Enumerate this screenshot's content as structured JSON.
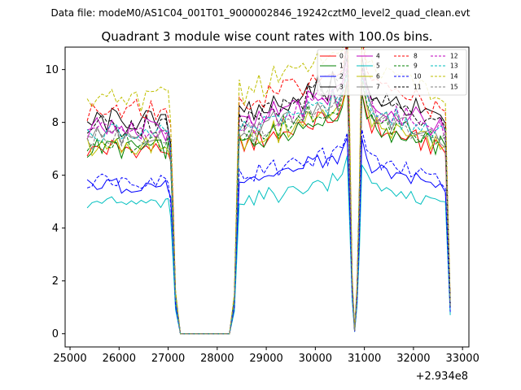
{
  "chart_data": {
    "type": "line",
    "suptitle": "Data file: modeM0/AS1C04_001T01_9000002846_19242cztM0_level2_quad_clean.evt",
    "title": "Quadrant 3 module wise count rates with 100.0s bins.",
    "xlabel": "",
    "ylabel": "",
    "x_offset_label": "+2.934e8",
    "x_tick_labels": [
      "25000",
      "26000",
      "27000",
      "28000",
      "29000",
      "30000",
      "31000",
      "32000",
      "33000"
    ],
    "x_ticks": [
      25000,
      26000,
      27000,
      28000,
      29000,
      30000,
      31000,
      32000,
      33000
    ],
    "y_tick_labels": [
      "0",
      "2",
      "4",
      "6",
      "8",
      "10"
    ],
    "y_ticks": [
      0,
      2,
      4,
      6,
      8,
      10
    ],
    "xlim": [
      24900,
      33130
    ],
    "ylim": [
      -0.5,
      10.85
    ],
    "legend_location": "upper-right",
    "legend_columns": 4,
    "segment_profile": {
      "x": [
        25350,
        25450,
        25550,
        25650,
        25750,
        25850,
        25950,
        26050,
        26150,
        26250,
        26350,
        26450,
        26550,
        26650,
        26750,
        26850,
        26950,
        27000,
        27050,
        27100,
        27150,
        27250,
        28250,
        28350,
        28450,
        28550,
        28650,
        28750,
        28850,
        28950,
        29050,
        29150,
        29250,
        29350,
        29450,
        29550,
        29650,
        29750,
        29850,
        29950,
        30050,
        30150,
        30250,
        30350,
        30450,
        30550,
        30650,
        30700,
        30750,
        30800,
        30850,
        30900,
        30950,
        31050,
        31150,
        31250,
        31350,
        31450,
        31550,
        31650,
        31750,
        31850,
        31950,
        32050,
        32150,
        32250,
        32350,
        32450,
        32550,
        32650,
        32750
      ],
      "y": [
        6.95,
        6.9,
        7.05,
        7.0,
        6.95,
        7.1,
        7.0,
        6.9,
        7.05,
        6.95,
        7.0,
        6.9,
        7.05,
        7.0,
        6.95,
        7.0,
        6.9,
        7.0,
        6.2,
        4.0,
        1.3,
        0.0,
        0.0,
        1.2,
        7.2,
        7.1,
        7.3,
        7.2,
        7.4,
        7.3,
        7.5,
        7.6,
        7.4,
        7.7,
        7.6,
        7.8,
        7.9,
        7.7,
        8.0,
        7.9,
        8.2,
        8.1,
        7.9,
        8.3,
        8.2,
        8.5,
        9.4,
        6.0,
        1.8,
        0.1,
        1.5,
        4.8,
        9.2,
        8.3,
        7.9,
        7.8,
        7.6,
        7.7,
        7.5,
        7.6,
        7.4,
        7.5,
        7.3,
        7.4,
        7.2,
        7.3,
        7.1,
        7.0,
        7.1,
        6.9,
        1.0
      ]
    },
    "series": [
      {
        "name": "0",
        "color": "#ff0000",
        "style": "solid",
        "level": 6.95
      },
      {
        "name": "1",
        "color": "#008000",
        "style": "solid",
        "level": 7.0
      },
      {
        "name": "2",
        "color": "#0000ff",
        "style": "solid",
        "level": 5.6
      },
      {
        "name": "3",
        "color": "#000000",
        "style": "solid",
        "level": 8.0
      },
      {
        "name": "4",
        "color": "#bf00bf",
        "style": "solid",
        "level": 7.7
      },
      {
        "name": "5",
        "color": "#00bfbf",
        "style": "solid",
        "level": 4.9
      },
      {
        "name": "6",
        "color": "#bfbf00",
        "style": "solid",
        "level": 7.1
      },
      {
        "name": "7",
        "color": "#808080",
        "style": "solid",
        "level": 7.4
      },
      {
        "name": "8",
        "color": "#ff0000",
        "style": "dashed",
        "level": 8.4
      },
      {
        "name": "9",
        "color": "#008000",
        "style": "dashed",
        "level": 7.2
      },
      {
        "name": "10",
        "color": "#0000ff",
        "style": "dashed",
        "level": 5.8
      },
      {
        "name": "11",
        "color": "#000000",
        "style": "dashed",
        "level": 7.9
      },
      {
        "name": "12",
        "color": "#bf00bf",
        "style": "dashed",
        "level": 7.6
      },
      {
        "name": "13",
        "color": "#00bfbf",
        "style": "dashed",
        "level": 7.5
      },
      {
        "name": "14",
        "color": "#bfbf00",
        "style": "dashed",
        "level": 8.9
      },
      {
        "name": "15",
        "color": "#808080",
        "style": "dashed",
        "level": 7.3
      }
    ]
  }
}
